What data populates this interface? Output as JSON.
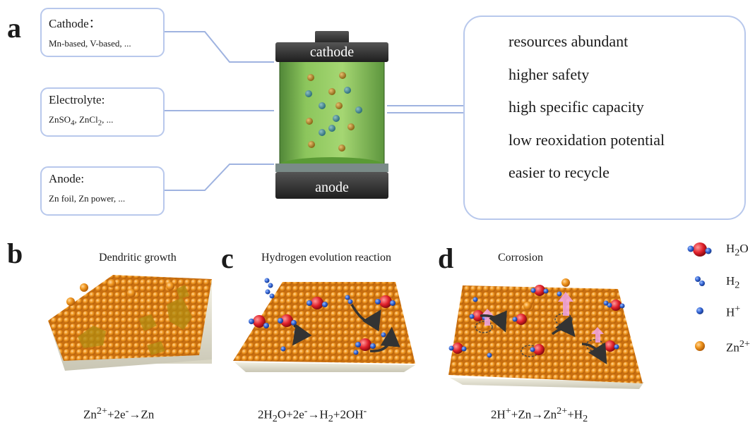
{
  "panels": {
    "a": {
      "letter": "a",
      "cathode_box": {
        "title": "Cathode：",
        "subtitle": "Mn-based, V-based, ..."
      },
      "electrolyte_box": {
        "title": "Electrolyte:",
        "subtitle_html": "ZnSO<sub>4</sub>, ZnCl<sub>2</sub>, ..."
      },
      "anode_box": {
        "title": "Anode:",
        "subtitle": "Zn foil, Zn power, ..."
      },
      "battery": {
        "top_label": "cathode",
        "bottom_label": "anode"
      },
      "advantages": [
        "resources abundant",
        "higher safety",
        "high specific capacity",
        "low reoxidation potential",
        "easier to recycle"
      ]
    },
    "b": {
      "letter": "b",
      "title": "Dendritic growth",
      "equation_html": "Zn<sup>2+</sup>+2e<sup>-</sup>→Zn"
    },
    "c": {
      "letter": "c",
      "title": "Hydrogen evolution reaction",
      "equation_html": "2H<sub>2</sub>O+2e<sup>-</sup>→H<sub>2</sub>+2OH<sup>-</sup>"
    },
    "d": {
      "letter": "d",
      "title": "Corrosion",
      "equation_html": "2H<sup>+</sup>+Zn→Zn<sup>2+</sup>+H<sub>2</sub>"
    }
  },
  "legend": [
    {
      "label_html": "H<sub>2</sub>O",
      "icon": "water-molecule-icon"
    },
    {
      "label_html": "H<sub>2</sub>",
      "icon": "hydrogen-molecule-icon"
    },
    {
      "label_html": "H<sup>+</sup>",
      "icon": "proton-icon"
    },
    {
      "label_html": "Zn<sup>2+</sup>",
      "icon": "zinc-ion-icon"
    }
  ],
  "colors": {
    "box_border": "#b8c8ec",
    "zinc": "#f0961e",
    "proton": "#2f5fd0",
    "oxygen": "#e0202a",
    "electrolyte": "#6fae3c",
    "battery_cap": "#333333"
  }
}
